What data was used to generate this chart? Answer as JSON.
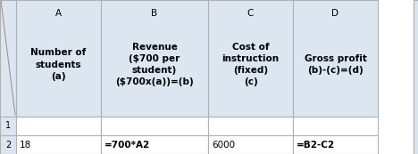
{
  "col_letters": [
    "A",
    "B",
    "C",
    "D"
  ],
  "header_texts": [
    "Number of\nstudents\n(a)",
    "Revenue\n($700 per\nstudent)\n($700x(a))=(b)",
    "Cost of\ninstruction\n(fixed)\n(c)",
    "Gross profit\n(b)-(c)=(d)"
  ],
  "row1_data": [
    "",
    "",
    "",
    ""
  ],
  "row2_data": [
    "18",
    "=700*A2",
    "6000",
    "=B2-C2"
  ],
  "row2_bold": [
    false,
    true,
    false,
    true
  ],
  "row_numbers": [
    "1",
    "2"
  ],
  "header_bg": "#dce6f1",
  "white_bg": "#ffffff",
  "grid_color": "#b0b0b0",
  "text_color": "#000000",
  "fig_width": 4.68,
  "fig_height": 1.73,
  "dpi": 100
}
